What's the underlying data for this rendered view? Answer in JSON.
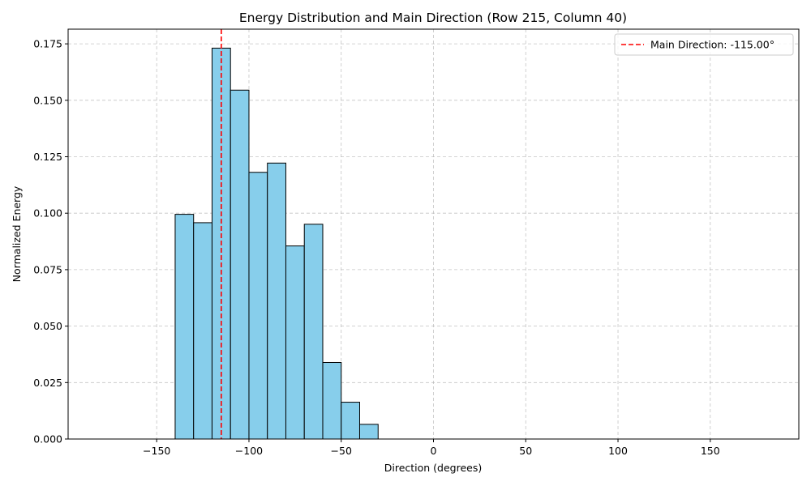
{
  "chart_data": {
    "type": "bar",
    "title": "Energy Distribution and Main Direction (Row 215, Column 40)",
    "xlabel": "Direction (degrees)",
    "ylabel": "Normalized Energy",
    "xlim": [
      -198,
      198
    ],
    "ylim": [
      0,
      0.1815
    ],
    "xticks": [
      -150,
      -100,
      -50,
      0,
      50,
      100,
      150
    ],
    "xtick_labels": [
      "−150",
      "−100",
      "−50",
      "0",
      "50",
      "100",
      "150"
    ],
    "yticks": [
      0,
      0.025,
      0.05,
      0.075,
      0.1,
      0.125,
      0.15,
      0.175
    ],
    "ytick_labels": [
      "0.000",
      "0.025",
      "0.050",
      "0.075",
      "0.100",
      "0.125",
      "0.150",
      "0.175"
    ],
    "grid": true,
    "bin_edges": [
      -180,
      -170,
      -160,
      -150,
      -140,
      -130,
      -120,
      -110,
      -100,
      -90,
      -80,
      -70,
      -60,
      -50,
      -40,
      -30,
      -20,
      -10,
      0,
      10,
      20,
      30,
      40,
      50,
      60,
      70,
      80,
      90,
      100,
      110,
      120,
      130,
      140,
      150,
      160,
      170,
      180
    ],
    "values": [
      0,
      0,
      0,
      0,
      0.0995,
      0.0958,
      0.1731,
      0.1545,
      0.1181,
      0.1222,
      0.0855,
      0.0951,
      0.0339,
      0.0163,
      0.0065,
      0,
      0,
      0,
      0,
      0,
      0,
      0,
      0,
      0,
      0,
      0,
      0,
      0,
      0,
      0,
      0,
      0,
      0,
      0,
      0,
      0
    ],
    "bar_color": "#87CEEB",
    "edge_color": "#000000",
    "main_direction": {
      "value": -115,
      "label": "Main Direction: -115.00°",
      "color": "#FF0000",
      "style": "dashed"
    },
    "legend": {
      "placement": "top-right"
    }
  }
}
